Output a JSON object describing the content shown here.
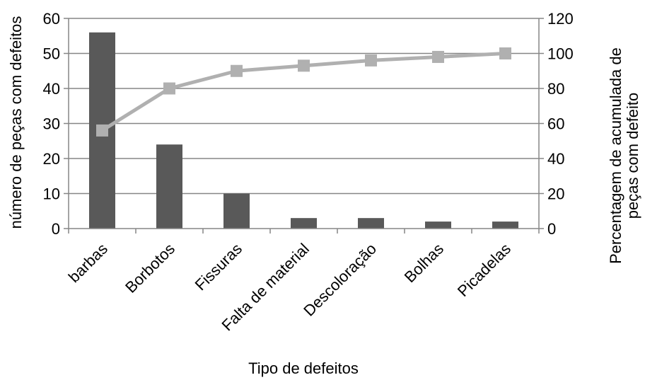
{
  "chart_data": {
    "type": "bar",
    "categories": [
      "barbas",
      "Borbotos",
      "Fissuras",
      "Falta de material",
      "Descoloração",
      "Bolhas",
      "Picadelas"
    ],
    "series": [
      {
        "type": "bar",
        "axis": "left",
        "values": [
          56,
          24,
          10,
          3,
          3,
          2,
          2
        ]
      },
      {
        "type": "line",
        "axis": "right",
        "values": [
          56,
          80,
          90,
          93,
          96,
          98,
          100
        ]
      }
    ],
    "xlabel": "Tipo de defeitos",
    "ylabel_left": "número de peças com defeitos",
    "ylabel_right_lines": [
      "Percentagem de acumulada de",
      "peças com defeito"
    ],
    "ylim_left": [
      0,
      60
    ],
    "ylim_right": [
      0,
      120
    ],
    "yticks_left": [
      "0",
      "10",
      "20",
      "30",
      "40",
      "50",
      "60"
    ],
    "yticks_right": [
      "0",
      "20",
      "40",
      "60",
      "80",
      "100",
      "120"
    ],
    "grid": true,
    "colors": {
      "bar": "#595959",
      "line": "#b0b0b0",
      "grid": "#868686",
      "axis": "#868686"
    }
  }
}
